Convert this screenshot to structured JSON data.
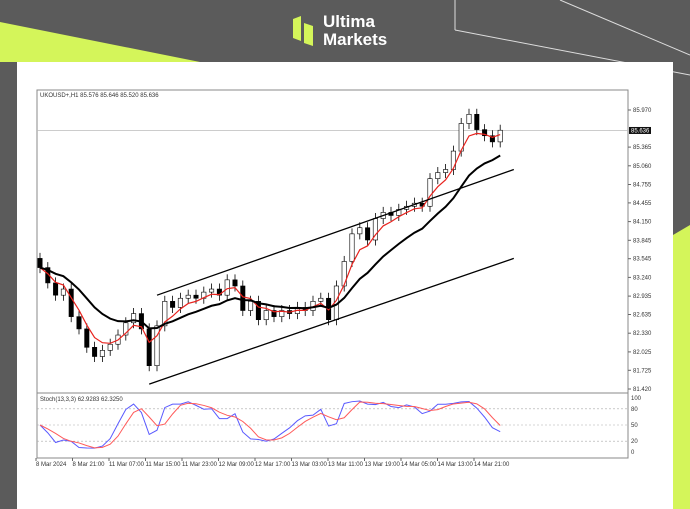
{
  "brand": {
    "line1": "Ultima",
    "line2": "Markets",
    "accent": "#d4f55a",
    "background": "#5b5b5b"
  },
  "chart_data": {
    "type": "candlestick",
    "symbol_header": "UKOUSD+,H1  85.576 85.646 85.520 85.636",
    "current_price_label": "85.636",
    "current_price": 85.636,
    "ylim": [
      81.42,
      85.97
    ],
    "y_ticks": [
      "85.970",
      "85.365",
      "85.060",
      "84.755",
      "84.455",
      "84.150",
      "83.845",
      "83.545",
      "83.240",
      "82.935",
      "82.635",
      "82.330",
      "82.025",
      "81.725",
      "81.420"
    ],
    "x_ticks": [
      "8 Mar 2024",
      "8 Mar 21:00",
      "11 Mar 07:00",
      "11 Mar 15:00",
      "11 Mar 23:00",
      "12 Mar 09:00",
      "12 Mar 17:00",
      "13 Mar 03:00",
      "13 Mar 11:00",
      "13 Mar 19:00",
      "14 Mar 05:00",
      "14 Mar 13:00",
      "14 Mar 21:00"
    ],
    "first_open": 83.55,
    "closes": [
      83.4,
      83.15,
      82.95,
      83.05,
      82.6,
      82.4,
      82.1,
      81.95,
      82.05,
      82.15,
      82.3,
      82.5,
      82.65,
      82.4,
      81.8,
      82.45,
      82.85,
      82.75,
      82.9,
      82.95,
      82.9,
      83.0,
      83.05,
      82.95,
      83.2,
      83.1,
      82.7,
      82.85,
      82.55,
      82.7,
      82.6,
      82.7,
      82.65,
      82.75,
      82.7,
      82.85,
      82.9,
      82.55,
      83.1,
      83.5,
      83.95,
      84.05,
      83.85,
      84.2,
      84.3,
      84.25,
      84.35,
      84.4,
      84.45,
      84.4,
      84.85,
      84.95,
      85.0,
      85.3,
      85.75,
      85.9,
      85.65,
      85.55,
      85.45,
      85.64
    ],
    "colors": {
      "candle": "#000000",
      "fast_ma": "#e8231e",
      "slow_ma": "#000000",
      "stoch_main": "#5a5aff",
      "stoch_signal": "#ff5a5a"
    },
    "channel": {
      "upper": [
        [
          15,
          82.95
        ],
        [
          61,
          85.0
        ]
      ],
      "lower": [
        [
          14,
          81.5
        ],
        [
          61,
          83.55
        ]
      ]
    },
    "stochastic": {
      "label": "Stoch(13,3,3) 62.9283 62.3250",
      "levels": [
        "100",
        "80",
        "50",
        "20",
        "0"
      ]
    }
  }
}
